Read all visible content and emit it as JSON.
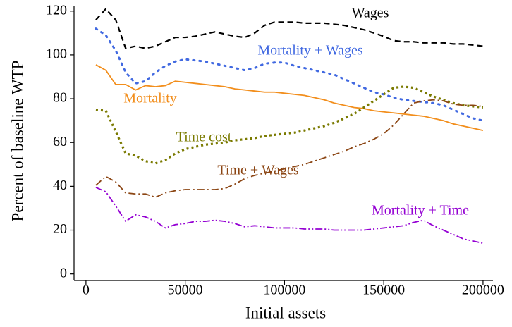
{
  "chart_data": {
    "type": "line",
    "x_label": "Initial assets",
    "y_label": "Percent of baseline WTP",
    "xlim": [
      -6000,
      205000
    ],
    "ylim": [
      -3,
      122.5
    ],
    "xticks": [
      0,
      50000,
      100000,
      150000,
      200000
    ],
    "yticks": [
      0,
      20,
      40,
      60,
      80,
      100,
      120
    ],
    "x": [
      5000,
      10000,
      15000,
      20000,
      25000,
      30000,
      35000,
      40000,
      45000,
      50000,
      55000,
      60000,
      65000,
      70000,
      75000,
      80000,
      85000,
      90000,
      95000,
      100000,
      105000,
      110000,
      115000,
      120000,
      125000,
      130000,
      135000,
      140000,
      145000,
      150000,
      155000,
      160000,
      165000,
      170000,
      175000,
      180000,
      185000,
      190000,
      195000,
      200000
    ],
    "series": [
      {
        "name": "Wages",
        "color": "#000000",
        "values": [
          116,
          121,
          116,
          103,
          104,
          103,
          104,
          106,
          108,
          108,
          108.5,
          109.5,
          110.5,
          109.5,
          108.5,
          108,
          110,
          113.5,
          115,
          115,
          115,
          114.5,
          114.5,
          114.5,
          114,
          113.5,
          112.5,
          111.5,
          110,
          108.5,
          106.5,
          106,
          106,
          105.5,
          105.5,
          105.5,
          105,
          105,
          104.5,
          104
        ]
      },
      {
        "name": "Mortality + Wages",
        "color": "#4169e1",
        "values": [
          112,
          109,
          102,
          92,
          87,
          88,
          92,
          95,
          97,
          98,
          97.5,
          97,
          96,
          95,
          94,
          93,
          94,
          96,
          96.5,
          96.5,
          95,
          94,
          93,
          92,
          91,
          89,
          87,
          85,
          83,
          82,
          80.5,
          79.5,
          79,
          78.5,
          78,
          77,
          75,
          73,
          71,
          70
        ]
      },
      {
        "name": "Mortality",
        "color": "#f28e1c",
        "values": [
          95.5,
          93,
          86.5,
          86.5,
          84,
          86,
          85.5,
          86,
          88,
          87.5,
          87,
          86.5,
          86,
          85.5,
          84.5,
          84,
          83.5,
          83,
          83,
          82.5,
          82,
          81.5,
          80.5,
          79.5,
          78,
          77,
          76,
          75.5,
          74.5,
          74,
          73.5,
          73,
          72.5,
          72,
          71,
          70,
          68.5,
          67.5,
          66.5,
          65.5
        ]
      },
      {
        "name": "Time cost",
        "color": "#7a7a00",
        "values": [
          75,
          74.5,
          65,
          55,
          54,
          51.5,
          50.5,
          52,
          55,
          57,
          58,
          59,
          59.5,
          60,
          61,
          61.5,
          62,
          63,
          63.5,
          64,
          64.5,
          65.5,
          66.5,
          67.5,
          69,
          71,
          73,
          76,
          79,
          82,
          85,
          85.5,
          85,
          83,
          81,
          79.5,
          78,
          77,
          76.5,
          76
        ]
      },
      {
        "name": "Time + Wages",
        "color": "#8b4513",
        "values": [
          40.5,
          44.5,
          42,
          37,
          36.5,
          36.5,
          35,
          37,
          38,
          38.5,
          38.5,
          38.5,
          38.5,
          39,
          41,
          43.5,
          45,
          46,
          47,
          48,
          49,
          50,
          51.5,
          53,
          54.5,
          56,
          58,
          59.5,
          61.5,
          64,
          68,
          73,
          78,
          79,
          79.5,
          79,
          77.5,
          77,
          77,
          76.5
        ]
      },
      {
        "name": "Mortality + Time",
        "color": "#9400d3",
        "values": [
          39.5,
          37.5,
          31,
          24,
          27,
          26,
          24,
          21,
          22.5,
          23,
          24,
          24,
          24.5,
          24,
          23,
          21.5,
          22,
          21.5,
          21,
          21,
          21,
          20.5,
          20.5,
          20.5,
          20,
          20,
          20,
          20,
          20.5,
          21,
          21.5,
          22,
          23.5,
          24.5,
          22,
          20,
          18,
          16,
          15,
          14
        ]
      }
    ]
  }
}
